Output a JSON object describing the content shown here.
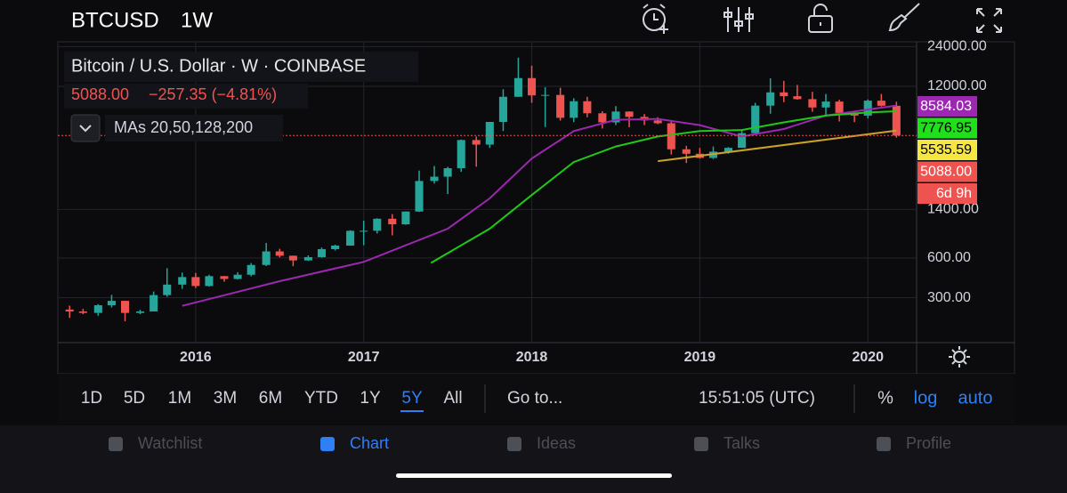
{
  "header": {
    "symbol": "BTCUSD",
    "interval": "1W"
  },
  "legend": {
    "title": "Bitcoin / U.S. Dollar · W · COINBASE",
    "price": "5088.00",
    "change": "−257.35 (−4.81%)",
    "indicator": "MAs 20,50,128,200"
  },
  "chart_data": {
    "type": "candlestick",
    "log_scale": true,
    "grid": true,
    "up_color": "#26a69a",
    "down_color": "#ef5350",
    "x": [
      2015.25,
      2015.33,
      2015.42,
      2015.5,
      2015.58,
      2015.67,
      2015.75,
      2015.83,
      2015.92,
      2016.0,
      2016.08,
      2016.17,
      2016.25,
      2016.33,
      2016.42,
      2016.5,
      2016.58,
      2016.67,
      2016.75,
      2016.83,
      2016.92,
      2017.0,
      2017.08,
      2017.17,
      2017.25,
      2017.33,
      2017.42,
      2017.5,
      2017.58,
      2017.67,
      2017.75,
      2017.83,
      2017.92,
      2018.0,
      2018.08,
      2018.17,
      2018.25,
      2018.33,
      2018.42,
      2018.5,
      2018.58,
      2018.67,
      2018.75,
      2018.83,
      2018.92,
      2019.0,
      2019.08,
      2019.17,
      2019.25,
      2019.33,
      2019.42,
      2019.5,
      2019.58,
      2019.67,
      2019.75,
      2019.83,
      2019.92,
      2020.0,
      2020.08,
      2020.17
    ],
    "open": [
      244,
      236,
      230,
      263,
      284,
      230,
      236,
      314,
      377,
      430,
      368,
      437,
      416,
      448,
      531,
      673,
      624,
      575,
      609,
      700,
      745,
      964,
      965,
      1190,
      1080,
      1350,
      2300,
      2480,
      2875,
      4700,
      4340,
      6450,
      10000,
      13860,
      10250,
      10330,
      6930,
      9250,
      7500,
      6400,
      7730,
      7040,
      6620,
      6300,
      4000,
      3700,
      3440,
      3840,
      4100,
      5300,
      8570,
      10800,
      10100,
      9600,
      8300,
      9200,
      7550,
      7200,
      9350,
      8550
    ],
    "high": [
      261,
      247,
      268,
      315,
      285,
      243,
      334,
      502,
      465,
      462,
      448,
      439,
      468,
      549,
      780,
      704,
      626,
      628,
      720,
      756,
      975,
      1150,
      1200,
      1290,
      1350,
      2760,
      2990,
      2950,
      4740,
      5000,
      6450,
      11400,
      19800,
      17200,
      11800,
      11700,
      9750,
      10000,
      7780,
      8500,
      7750,
      7400,
      7000,
      6500,
      4250,
      4100,
      4200,
      4150,
      5600,
      9000,
      13800,
      13200,
      12300,
      10900,
      10500,
      9500,
      7750,
      9550,
      10500,
      9180
    ],
    "low": [
      211,
      225,
      219,
      253,
      199,
      225,
      236,
      305,
      350,
      355,
      364,
      397,
      413,
      436,
      521,
      606,
      520,
      570,
      605,
      685,
      745,
      750,
      920,
      890,
      1070,
      1340,
      2200,
      1830,
      2700,
      2950,
      4100,
      5500,
      10000,
      9000,
      5900,
      6600,
      6430,
      7000,
      5750,
      6100,
      5880,
      6100,
      6200,
      3650,
      3150,
      3400,
      3380,
      3700,
      4100,
      5300,
      7450,
      9100,
      9500,
      7700,
      7300,
      6500,
      6430,
      6850,
      8450,
      4900
    ],
    "close": [
      236,
      230,
      263,
      284,
      230,
      236,
      314,
      377,
      430,
      368,
      437,
      416,
      448,
      531,
      673,
      624,
      575,
      609,
      700,
      745,
      964,
      965,
      1190,
      1080,
      1350,
      2300,
      2480,
      2875,
      4700,
      4340,
      6450,
      10000,
      13860,
      10250,
      10330,
      6930,
      9250,
      7500,
      6400,
      7730,
      7040,
      6620,
      6300,
      4000,
      3700,
      3440,
      3840,
      4100,
      5300,
      8570,
      10800,
      10100,
      9600,
      8300,
      9200,
      7550,
      7200,
      9350,
      8550,
      5088
    ],
    "series": [
      {
        "color": "#9c27b0",
        "x": [
          2015.92,
          2016.5,
          2017.0,
          2017.5,
          2017.75,
          2018.0,
          2018.25,
          2018.5,
          2018.75,
          2019.0,
          2019.25,
          2019.5,
          2019.75,
          2020.0,
          2020.17
        ],
        "values": [
          260,
          400,
          560,
          1000,
          1700,
          3400,
          5500,
          6700,
          6800,
          6100,
          5000,
          5700,
          7200,
          8000,
          8584
        ]
      },
      {
        "color": "#1fc916",
        "x": [
          2017.4,
          2017.75,
          2018.0,
          2018.25,
          2018.5,
          2018.75,
          2019.0,
          2019.25,
          2019.5,
          2019.75,
          2020.0,
          2020.17
        ],
        "values": [
          550,
          1000,
          1800,
          3200,
          4200,
          5000,
          5500,
          5600,
          6400,
          7200,
          7600,
          7777
        ]
      },
      {
        "color": "#c9a227",
        "x": [
          2018.75,
          2020.17
        ],
        "values": [
          3250,
          5536
        ]
      }
    ],
    "current_price": 5088,
    "xlim": [
      2015.18,
      2020.29
    ],
    "xticks": [
      2016,
      2017,
      2018,
      2019,
      2020
    ],
    "ylim": [
      137,
      26100
    ],
    "yticks": [
      {
        "value": 300,
        "label": "300.00"
      },
      {
        "value": 600,
        "label": "600.00"
      },
      {
        "value": 1400,
        "label": "1400.00"
      },
      {
        "value": 12000,
        "label": "12000.00"
      },
      {
        "value": 24000,
        "label": "24000.00"
      }
    ],
    "price_labels": [
      {
        "label": "8584.03",
        "color": "#9c27b0"
      },
      {
        "label": "7776.95",
        "color": "#1fe01a"
      },
      {
        "label": "5535.59",
        "color": "#f5e642"
      },
      {
        "label": "5088.00",
        "color": "#ef5350"
      },
      {
        "label": "6d 9h",
        "color": "#ef5350"
      }
    ]
  },
  "toolbar": {
    "ranges": [
      "1D",
      "5D",
      "1M",
      "3M",
      "6M",
      "YTD",
      "1Y",
      "5Y",
      "All"
    ],
    "selected_range": 7,
    "goto": "Go to...",
    "time": "15:51:05 (UTC)",
    "options": [
      "%",
      "log",
      "auto"
    ]
  },
  "tabs": {
    "items": [
      "Watchlist",
      "Chart",
      "Ideas",
      "Talks",
      "Profile"
    ],
    "selected": 1
  }
}
